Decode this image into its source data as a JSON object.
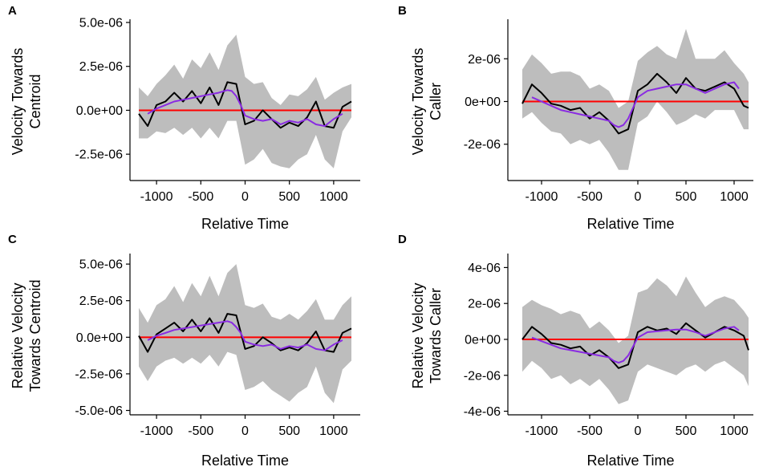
{
  "figure_title": "",
  "colors": {
    "ribbon": "#bdbdbd",
    "mean_line": "#000000",
    "smooth_line": "#8a2be2",
    "zero_line": "#ff0000",
    "axis": "#000000"
  },
  "chart_data": [
    {
      "panel": "A",
      "type": "line",
      "title": "",
      "xlabel": "Relative Time",
      "ylabel_lines": [
        "Velocity Towards",
        "Centroid"
      ],
      "xlim": [
        -1300,
        1300
      ],
      "ylim": [
        -4e-06,
        5e-06
      ],
      "xticks": [
        -1000,
        -500,
        0,
        500,
        1000
      ],
      "xtick_labels": [
        "-1000",
        "-500",
        "0",
        "500",
        "1000"
      ],
      "yticks": [
        5e-06,
        2.5e-06,
        0,
        -2.5e-06
      ],
      "ytick_labels": [
        "5.0e-06",
        "2.5e-06",
        "0.0e+00",
        "-2.5e-06"
      ],
      "reference_line_y": 0,
      "x": [
        -1200,
        -1100,
        -1000,
        -900,
        -800,
        -700,
        -600,
        -500,
        -400,
        -300,
        -200,
        -100,
        0,
        100,
        200,
        300,
        400,
        500,
        600,
        700,
        800,
        900,
        1000,
        1100,
        1200
      ],
      "series": [
        {
          "name": "mean",
          "values": [
            -2e-07,
            -9e-07,
            3e-07,
            5e-07,
            1e-06,
            5e-07,
            1.1e-06,
            4e-07,
            1.3e-06,
            3e-07,
            1.6e-06,
            1.5e-06,
            -8e-07,
            -6e-07,
            0.0,
            -5e-07,
            -1e-06,
            -7e-07,
            -9e-07,
            -4e-07,
            5e-07,
            -9e-07,
            -1e-06,
            2e-07,
            5e-07
          ]
        },
        {
          "name": "upper",
          "values": [
            1.3e-06,
            8e-07,
            1.5e-06,
            2e-06,
            2.6e-06,
            1.8e-06,
            2.9e-06,
            2.4e-06,
            3.3e-06,
            2.3e-06,
            3.7e-06,
            4.3e-06,
            1.9e-06,
            1.5e-06,
            1.6e-06,
            7e-07,
            3e-07,
            9e-07,
            8e-07,
            1.2e-06,
            1.9e-06,
            6e-07,
            1e-06,
            1.3e-06,
            1.5e-06
          ]
        },
        {
          "name": "lower",
          "values": [
            -1.6e-06,
            -1.6e-06,
            -1.2e-06,
            -1.3e-06,
            -1e-06,
            -1.4e-06,
            -1e-06,
            -1.6e-06,
            -1e-06,
            -1.6e-06,
            -6e-07,
            -6e-07,
            -3.1e-06,
            -2.8e-06,
            -2.2e-06,
            -3e-06,
            -3.2e-06,
            -3.3e-06,
            -2.8e-06,
            -2.5e-06,
            -1.4e-06,
            -2.8e-06,
            -3.3e-06,
            -1.2e-06,
            -4e-07
          ]
        },
        {
          "name": "smooth",
          "x": [
            -1100,
            -1000,
            -900,
            -800,
            -700,
            -600,
            -500,
            -400,
            -300,
            -200,
            -150,
            -100,
            -50,
            0,
            100,
            200,
            300,
            400,
            500,
            600,
            700,
            800,
            900,
            1000,
            1100
          ],
          "values": [
            -2e-07,
            1e-07,
            3e-07,
            5e-07,
            6e-07,
            7e-07,
            8e-07,
            9e-07,
            1e-06,
            1.15e-06,
            1.1e-06,
            8e-07,
            3e-07,
            -3e-07,
            -5e-07,
            -6e-07,
            -5e-07,
            -8e-07,
            -6e-07,
            -7e-07,
            -5e-07,
            -8e-07,
            -9e-07,
            -5e-07,
            -2e-07
          ]
        }
      ]
    },
    {
      "panel": "B",
      "type": "line",
      "title": "",
      "xlabel": "Relative Time",
      "ylabel_lines": [
        "Velocity Towards",
        "Caller"
      ],
      "xlim": [
        -1350,
        1200
      ],
      "ylim": [
        -3.7e-06,
        3.7e-06
      ],
      "xticks": [
        -1000,
        -500,
        0,
        500,
        1000
      ],
      "xtick_labels": [
        "-1000",
        "-500",
        "0",
        "500",
        "1000"
      ],
      "yticks": [
        2e-06,
        0,
        -2e-06
      ],
      "ytick_labels": [
        "2e-06",
        "0e+00",
        "-2e-06"
      ],
      "reference_line_y": 0,
      "x": [
        -1200,
        -1100,
        -1000,
        -900,
        -800,
        -700,
        -600,
        -500,
        -400,
        -300,
        -200,
        -100,
        0,
        100,
        200,
        300,
        400,
        500,
        600,
        700,
        800,
        900,
        1000,
        1100,
        1150
      ],
      "series": [
        {
          "name": "mean",
          "values": [
            -1e-07,
            8e-07,
            4e-07,
            -1e-07,
            -2e-07,
            -4e-07,
            -3e-07,
            -8e-07,
            -5e-07,
            -9e-07,
            -1.5e-06,
            -1.3e-06,
            5e-07,
            8e-07,
            1.3e-06,
            9e-07,
            4e-07,
            1.1e-06,
            6e-07,
            5e-07,
            7e-07,
            9e-07,
            6e-07,
            -2e-07,
            -3e-07
          ]
        },
        {
          "name": "upper",
          "values": [
            1.5e-06,
            2.2e-06,
            1.8e-06,
            1.3e-06,
            1.4e-06,
            1.4e-06,
            1.2e-06,
            6e-07,
            8e-07,
            5e-07,
            -3e-07,
            0.0,
            1.9e-06,
            2.3e-06,
            2.6e-06,
            2.2e-06,
            2e-06,
            3.4e-06,
            2e-06,
            2e-06,
            2e-06,
            2.4e-06,
            1.8e-06,
            1.3e-06,
            9e-07
          ]
        },
        {
          "name": "lower",
          "values": [
            -8e-07,
            -5e-07,
            -1e-06,
            -1.4e-06,
            -1.5e-06,
            -2e-06,
            -1.8e-06,
            -2e-06,
            -1.8e-06,
            -2.4e-06,
            -3.2e-06,
            -3.2e-06,
            -1e-06,
            -7e-07,
            0.0,
            -5e-07,
            -1.1e-06,
            -9e-07,
            -6e-07,
            -8e-07,
            -4e-07,
            -4e-07,
            -4e-07,
            -1.3e-06,
            -1.3e-06
          ]
        },
        {
          "name": "smooth",
          "x": [
            -1100,
            -1000,
            -900,
            -800,
            -700,
            -600,
            -500,
            -400,
            -300,
            -250,
            -200,
            -150,
            -100,
            -50,
            0,
            100,
            200,
            300,
            400,
            500,
            600,
            700,
            800,
            900,
            1000,
            1050
          ],
          "values": [
            2e-07,
            0.0,
            -2e-07,
            -4e-07,
            -5e-07,
            -6e-07,
            -7e-07,
            -8e-07,
            -9e-07,
            -1.1e-06,
            -1.2e-06,
            -1.1e-06,
            -8e-07,
            -3e-07,
            2e-07,
            5e-07,
            6e-07,
            7e-07,
            8e-07,
            8e-07,
            6e-07,
            4e-07,
            6e-07,
            8e-07,
            9e-07,
            6e-07
          ]
        }
      ]
    },
    {
      "panel": "C",
      "type": "line",
      "title": "",
      "xlabel": "Relative Time",
      "ylabel_lines": [
        "Relative Velocity",
        "Towards Centroid"
      ],
      "xlim": [
        -1300,
        1300
      ],
      "ylim": [
        -5.3e-06,
        5.5e-06
      ],
      "xticks": [
        -1000,
        -500,
        0,
        500,
        1000
      ],
      "xtick_labels": [
        "-1000",
        "-500",
        "0",
        "500",
        "1000"
      ],
      "yticks": [
        5e-06,
        2.5e-06,
        0,
        -2.5e-06,
        -5e-06
      ],
      "ytick_labels": [
        "5.0e-06",
        "2.5e-06",
        "0.0e+00",
        "-2.5e-06",
        "-5.0e-06"
      ],
      "reference_line_y": 0,
      "x": [
        -1200,
        -1100,
        -1000,
        -900,
        -800,
        -700,
        -600,
        -500,
        -400,
        -300,
        -200,
        -100,
        0,
        100,
        200,
        300,
        400,
        500,
        600,
        700,
        800,
        900,
        1000,
        1100,
        1200
      ],
      "series": [
        {
          "name": "mean",
          "values": [
            1e-07,
            -1e-06,
            2e-07,
            6e-07,
            1e-06,
            4e-07,
            1.2e-06,
            4e-07,
            1.3e-06,
            3e-07,
            1.6e-06,
            1.5e-06,
            -8e-07,
            -6e-07,
            0.0,
            -4e-07,
            -9e-07,
            -7e-07,
            -9e-07,
            -4e-07,
            4e-07,
            -9e-07,
            -1e-06,
            3e-07,
            6e-07
          ]
        },
        {
          "name": "upper",
          "values": [
            2e-06,
            1e-06,
            2.2e-06,
            2.6e-06,
            3.5e-06,
            2.4e-06,
            3.7e-06,
            2.8e-06,
            4.2e-06,
            2.8e-06,
            4.4e-06,
            5e-06,
            2.2e-06,
            2e-06,
            2.3e-06,
            1.4e-06,
            1.2e-06,
            1.6e-06,
            1.2e-06,
            1.8e-06,
            2.6e-06,
            1.2e-06,
            1.2e-06,
            2.2e-06,
            2.8e-06
          ]
        },
        {
          "name": "lower",
          "values": [
            -2e-06,
            -3e-06,
            -2e-06,
            -1.6e-06,
            -1.4e-06,
            -1.8e-06,
            -1.4e-06,
            -1.8e-06,
            -1.2e-06,
            -2e-06,
            -1e-06,
            -1.2e-06,
            -3.6e-06,
            -3.4e-06,
            -3e-06,
            -3.6e-06,
            -4e-06,
            -4.4e-06,
            -3.8e-06,
            -3.4e-06,
            -2e-06,
            -3.8e-06,
            -4.5e-06,
            -2.2e-06,
            -1.6e-06
          ]
        },
        {
          "name": "smooth",
          "x": [
            -1100,
            -1000,
            -900,
            -800,
            -700,
            -600,
            -500,
            -400,
            -300,
            -200,
            -150,
            -100,
            -50,
            0,
            100,
            200,
            300,
            400,
            500,
            600,
            700,
            800,
            900,
            1000,
            1100
          ],
          "values": [
            -2e-07,
            1e-07,
            3e-07,
            5e-07,
            6e-07,
            7e-07,
            8e-07,
            9e-07,
            1e-06,
            1.1e-06,
            1e-06,
            7e-07,
            3e-07,
            -3e-07,
            -5e-07,
            -6e-07,
            -5e-07,
            -8e-07,
            -6e-07,
            -7e-07,
            -5e-07,
            -8e-07,
            -9e-07,
            -5e-07,
            -2e-07
          ]
        }
      ]
    },
    {
      "panel": "D",
      "type": "line",
      "title": "",
      "xlabel": "Relative Time",
      "ylabel_lines": [
        "Relative Velocity",
        "Towards Caller"
      ],
      "xlim": [
        -1350,
        1200
      ],
      "ylim": [
        -4.2e-06,
        4.6e-06
      ],
      "xticks": [
        -1000,
        -500,
        0,
        500,
        1000
      ],
      "xtick_labels": [
        "-1000",
        "-500",
        "0",
        "500",
        "1000"
      ],
      "yticks": [
        4e-06,
        2e-06,
        0,
        -2e-06,
        -4e-06
      ],
      "ytick_labels": [
        "4e-06",
        "2e-06",
        "0e+00",
        "-2e-06",
        "-4e-06"
      ],
      "reference_line_y": 0,
      "x": [
        -1200,
        -1100,
        -1000,
        -900,
        -800,
        -700,
        -600,
        -500,
        -400,
        -300,
        -200,
        -100,
        0,
        100,
        200,
        300,
        400,
        500,
        600,
        700,
        800,
        900,
        1000,
        1100,
        1150
      ],
      "series": [
        {
          "name": "mean",
          "values": [
            0.0,
            7e-07,
            3e-07,
            -2e-07,
            -3e-07,
            -5e-07,
            -4e-07,
            -9e-07,
            -6e-07,
            -1e-06,
            -1.6e-06,
            -1.4e-06,
            4e-07,
            7e-07,
            5e-07,
            6e-07,
            3e-07,
            9e-07,
            5e-07,
            1e-07,
            4e-07,
            7e-07,
            5e-07,
            2e-07,
            -6e-07
          ]
        },
        {
          "name": "upper",
          "values": [
            1.8e-06,
            2.2e-06,
            1.9e-06,
            1.7e-06,
            1.4e-06,
            1.6e-06,
            1.4e-06,
            6e-07,
            1e-06,
            5e-07,
            -2e-07,
            2e-07,
            2.6e-06,
            2.8e-06,
            3.4e-06,
            3e-06,
            2.4e-06,
            3.5e-06,
            2.6e-06,
            1.8e-06,
            2.2e-06,
            2.4e-06,
            2.2e-06,
            1.6e-06,
            1.2e-06
          ]
        },
        {
          "name": "lower",
          "values": [
            -1.8e-06,
            -1.2e-06,
            -1.6e-06,
            -2.2e-06,
            -2e-06,
            -2.5e-06,
            -2.2e-06,
            -2.6e-06,
            -2.2e-06,
            -2.8e-06,
            -3.6e-06,
            -3.4e-06,
            -1.8e-06,
            -1.4e-06,
            -1.6e-06,
            -1.8e-06,
            -2e-06,
            -1.6e-06,
            -1.4e-06,
            -1.8e-06,
            -1.4e-06,
            -1.2e-06,
            -1.6e-06,
            -2e-06,
            -2.6e-06
          ]
        },
        {
          "name": "smooth",
          "x": [
            -1100,
            -1000,
            -900,
            -800,
            -700,
            -600,
            -500,
            -400,
            -300,
            -250,
            -200,
            -150,
            -100,
            -50,
            0,
            100,
            200,
            300,
            400,
            500,
            600,
            700,
            800,
            900,
            1000,
            1050
          ],
          "values": [
            1e-07,
            -1e-07,
            -3e-07,
            -5e-07,
            -6e-07,
            -7e-07,
            -8e-07,
            -9e-07,
            -1e-06,
            -1.2e-06,
            -1.3e-06,
            -1.2e-06,
            -9e-07,
            -4e-07,
            1e-07,
            4e-07,
            4.5e-07,
            5e-07,
            5.5e-07,
            5.5e-07,
            4e-07,
            2e-07,
            4e-07,
            6e-07,
            7e-07,
            5e-07
          ]
        }
      ]
    }
  ]
}
